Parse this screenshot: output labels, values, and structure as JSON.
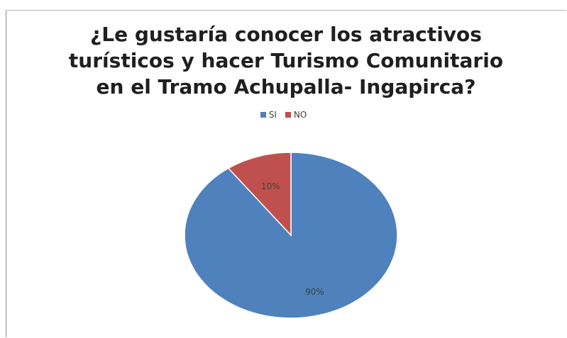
{
  "chart_data": {
    "type": "pie",
    "title_lines": [
      "¿Le gustaría conocer los atractivos",
      "turísticos y hacer Turismo Comunitario",
      "en el Tramo Achupalla- Ingapirca?"
    ],
    "legend_position": "top",
    "slices": [
      {
        "name": "SI",
        "value": 90,
        "label": "90%",
        "color": "#4f81bd"
      },
      {
        "name": "NO",
        "value": 10,
        "label": "10%",
        "color": "#c0504d"
      }
    ]
  }
}
